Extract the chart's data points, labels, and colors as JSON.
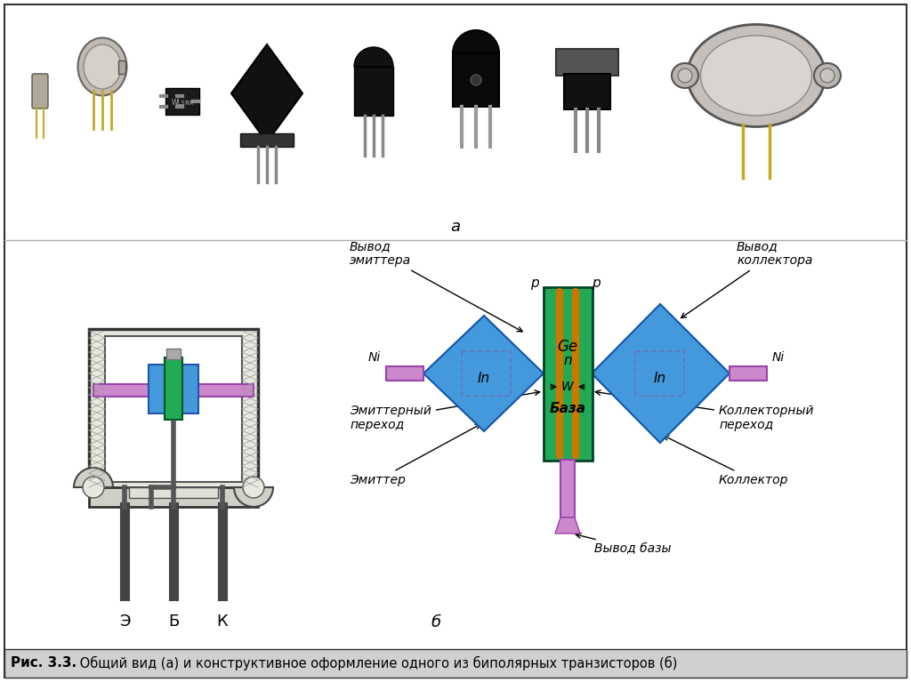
{
  "bg_color": "#ffffff",
  "border_color": "#000000",
  "title_caption": "Рис. 3.3.",
  "caption_text": " Общий вид (а) и конструктивное оформление одного из биполярных транзисторов (б)",
  "label_a": "а",
  "label_b": "б",
  "labels_ebk": [
    "Э",
    "Б",
    "К"
  ],
  "colors": {
    "green_base": "#22aa55",
    "blue_ec": "#4499dd",
    "purple_lead": "#cc88cc",
    "orange_junction": "#cc7700",
    "caption_bg": "#d0d0d0"
  },
  "font_sizes": {
    "label_ab": 13,
    "labels_ebk": 13,
    "diagram": 10,
    "caption": 10.5,
    "caption_bold": 11
  }
}
